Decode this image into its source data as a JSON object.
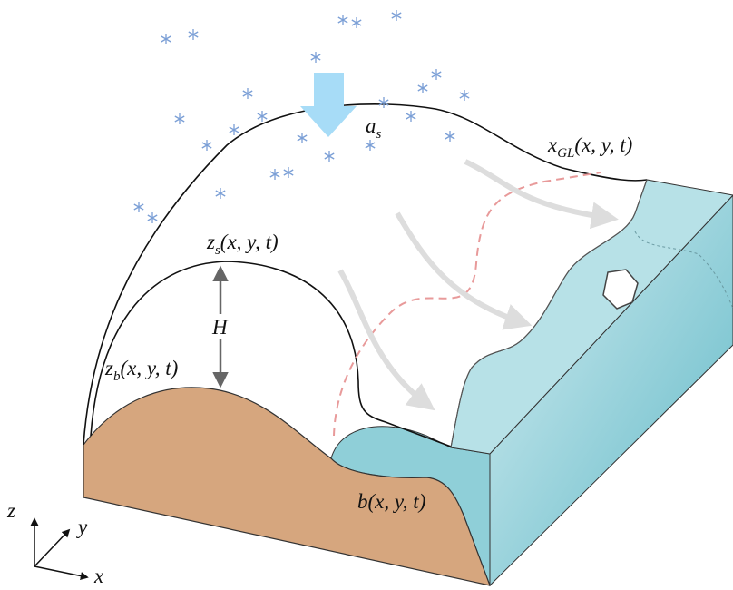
{
  "labels": {
    "accumulation": {
      "base": "a",
      "sub": "s"
    },
    "grounding_line": {
      "base": "x",
      "sub": "GL",
      "args": "(x, y, t)"
    },
    "surface": {
      "base": "z",
      "sub": "s",
      "args": "(x, y, t)"
    },
    "thickness": "H",
    "bed": {
      "base": "z",
      "sub": "b",
      "args": "(x, y, t)"
    },
    "bathymetry": "b(x, y, t)"
  },
  "axes": {
    "z": "z",
    "y": "y",
    "x": "x"
  }
}
